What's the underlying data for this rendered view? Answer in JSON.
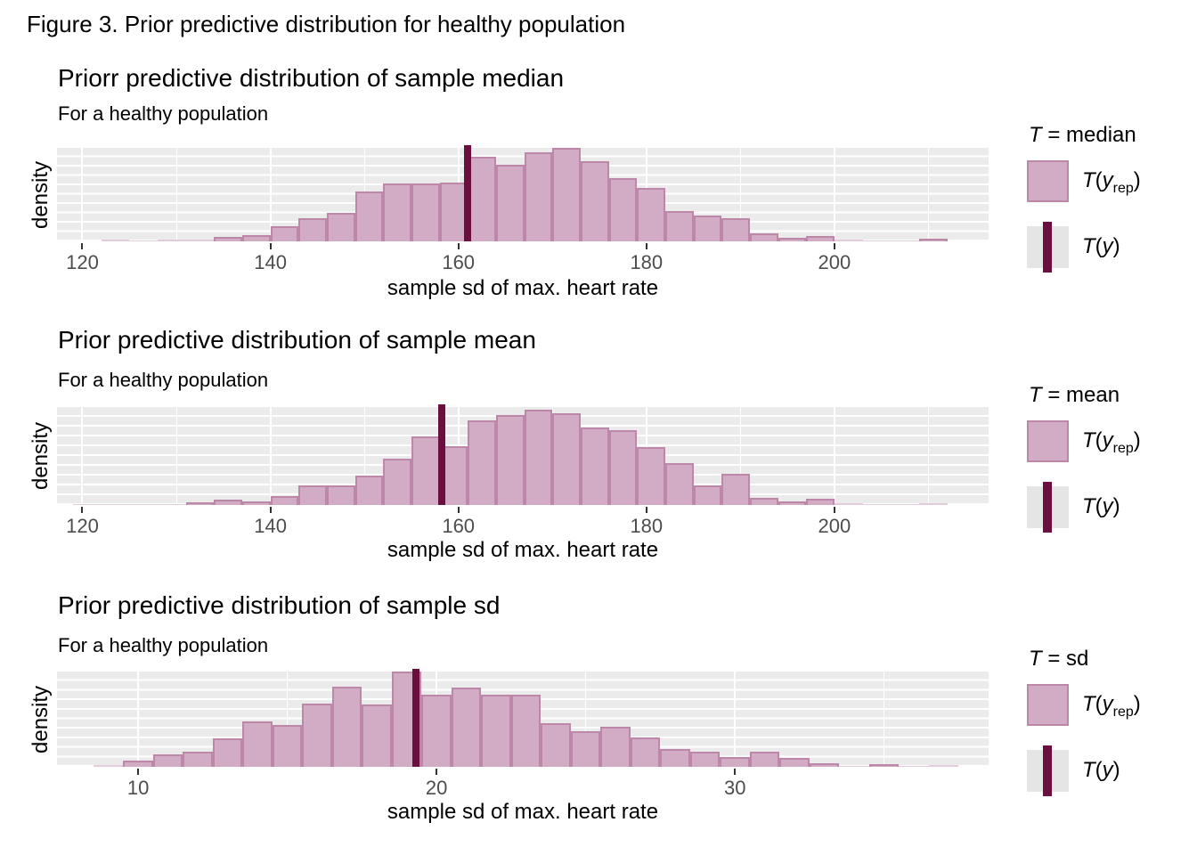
{
  "figure_title": "Figure 3. Prior predictive distribution for healthy population",
  "colors": {
    "bar_fill": "#d2abc4",
    "bar_border": "#bd87a9",
    "bar_faint": "#e4cbd9",
    "observed_line": "#6b0f3e",
    "panel_bg": "#ebebeb",
    "gridline": "#ffffff",
    "tick_mark": "#333333",
    "tick_label": "#4d4d4d",
    "legend_key_bg": "#e5e5e5"
  },
  "chart_data": [
    {
      "type": "histogram",
      "title": "Priorr predictive distribution of sample median",
      "subtitle": "For a healthy population",
      "xlabel": "sample sd of max. heart rate",
      "ylabel": "density",
      "legend": {
        "title": "T = median",
        "items": [
          {
            "label": "T(y_rep)",
            "swatch": "filled-square"
          },
          {
            "label": "T(y)",
            "swatch": "vertical-line"
          }
        ]
      },
      "x_domain": [
        117.3,
        216.4
      ],
      "x_ticks": [
        120,
        140,
        160,
        180,
        200
      ],
      "x_tick_labels": [
        "120",
        "140",
        "160",
        "180",
        "200"
      ],
      "x_minor_gridlines": [
        130,
        150,
        170,
        190,
        210
      ],
      "y_gridline_rows": 10,
      "heights_unit": "relative density (max = 1), y axis unlabeled",
      "bins": {
        "start": 119,
        "width": 3
      },
      "bin_heights": [
        0,
        0.018,
        0.006,
        0.018,
        0.018,
        0.05,
        0.07,
        0.16,
        0.25,
        0.3,
        0.53,
        0.62,
        0.62,
        0.63,
        0.9,
        0.82,
        0.95,
        1.0,
        0.86,
        0.68,
        0.57,
        0.32,
        0.28,
        0.25,
        0.085,
        0.04,
        0.06,
        0.015,
        0.005,
        0.005,
        0.025
      ],
      "observed_stat_value": 161
    },
    {
      "type": "histogram",
      "title": "Prior predictive distribution of sample mean",
      "subtitle": "For a healthy population",
      "xlabel": "sample sd of max. heart rate",
      "ylabel": "density",
      "legend": {
        "title": "T = mean",
        "items": [
          {
            "label": "T(y_rep)",
            "swatch": "filled-square"
          },
          {
            "label": "T(y)",
            "swatch": "vertical-line"
          }
        ]
      },
      "x_domain": [
        117.3,
        216.4
      ],
      "x_ticks": [
        120,
        140,
        160,
        180,
        200
      ],
      "x_tick_labels": [
        "120",
        "140",
        "160",
        "180",
        "200"
      ],
      "x_minor_gridlines": [
        130,
        150,
        170,
        190,
        210
      ],
      "y_gridline_rows": 10,
      "heights_unit": "relative density (max = 1), y axis unlabeled",
      "bins": {
        "start": 119,
        "width": 3
      },
      "bin_heights": [
        0.01,
        0.004,
        0.01,
        0.004,
        0.03,
        0.05,
        0.04,
        0.09,
        0.2,
        0.2,
        0.3,
        0.47,
        0.7,
        0.6,
        0.86,
        0.92,
        0.97,
        0.94,
        0.79,
        0.76,
        0.59,
        0.43,
        0.2,
        0.32,
        0.07,
        0.04,
        0.06,
        0.015,
        0.005,
        0.005,
        0.02
      ],
      "observed_stat_value": 158.2
    },
    {
      "type": "histogram",
      "title": "Prior predictive distribution of sample sd",
      "subtitle": "For a healthy population",
      "xlabel": "sample sd of max. heart rate",
      "ylabel": "density",
      "legend": {
        "title": "T = sd",
        "items": [
          {
            "label": "T(y_rep)",
            "swatch": "filled-square"
          },
          {
            "label": "T(y)",
            "swatch": "vertical-line"
          }
        ]
      },
      "x_domain": [
        7.28,
        38.5
      ],
      "x_ticks": [
        10,
        20,
        30
      ],
      "x_tick_labels": [
        "10",
        "20",
        "30"
      ],
      "x_minor_gridlines": [
        15,
        25,
        35
      ],
      "y_gridline_rows": 10,
      "heights_unit": "relative density (max = 1), y axis unlabeled",
      "bins": {
        "start": 8.5,
        "width": 1
      },
      "bin_heights": [
        0.02,
        0.07,
        0.13,
        0.16,
        0.3,
        0.48,
        0.44,
        0.66,
        0.84,
        0.65,
        1.0,
        0.76,
        0.83,
        0.76,
        0.76,
        0.46,
        0.37,
        0.42,
        0.31,
        0.19,
        0.16,
        0.1,
        0.16,
        0.09,
        0.04,
        0.005,
        0.03,
        0.01,
        0.02
      ],
      "observed_stat_value": 19.3
    }
  ]
}
